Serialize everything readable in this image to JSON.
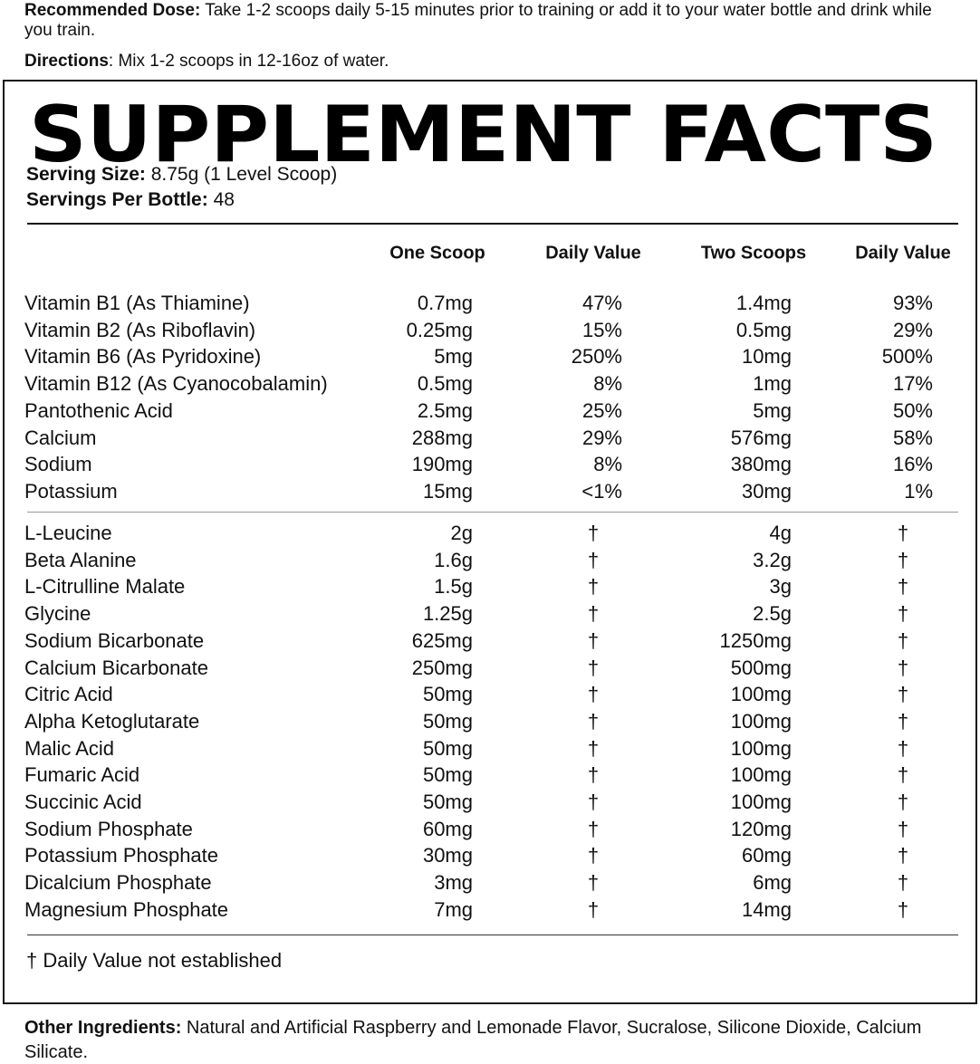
{
  "intro": {
    "dose_label": "Recommended Dose:",
    "dose_text": "Take 1-2 scoops daily 5-15 minutes prior to training or add it to your water bottle and drink while you train.",
    "directions_label": "Directions",
    "directions_text": ": Mix 1-2 scoops in 12-16oz of water."
  },
  "facts": {
    "title": "SUPPLEMENT FACTS",
    "serving_size_label": "Serving Size:",
    "serving_size": "8.75g (1 Level Scoop)",
    "servings_label": "Servings Per Bottle:",
    "servings": "48",
    "headers": [
      "One Scoop",
      "Daily Value",
      "Two Scoops",
      "Daily Value"
    ],
    "vitamins": [
      [
        "Vitamin B1 (As Thiamine)",
        "0.7mg",
        "47%",
        "1.4mg",
        "93%"
      ],
      [
        "Vitamin B2 (As Riboflavin)",
        "0.25mg",
        "15%",
        "0.5mg",
        "29%"
      ],
      [
        "Vitamin B6 (As Pyridoxine)",
        "5mg",
        "250%",
        "10mg",
        "500%"
      ],
      [
        "Vitamin B12 (As Cyanocobalamin)",
        "0.5mg",
        "8%",
        "1mg",
        "17%"
      ],
      [
        "Pantothenic Acid",
        "2.5mg",
        "25%",
        "5mg",
        "50%"
      ],
      [
        "Calcium",
        "288mg",
        "29%",
        "576mg",
        "58%"
      ],
      [
        "Sodium",
        "190mg",
        "8%",
        "380mg",
        "16%"
      ],
      [
        "Potassium",
        "15mg",
        "<1%",
        "30mg",
        "1%"
      ]
    ],
    "others": [
      [
        "L-Leucine",
        "2g",
        "†",
        "4g",
        "†"
      ],
      [
        "Beta Alanine",
        "1.6g",
        "†",
        "3.2g",
        "†"
      ],
      [
        "L-Citrulline Malate",
        "1.5g",
        "†",
        "3g",
        "†"
      ],
      [
        "Glycine",
        "1.25g",
        "†",
        "2.5g",
        "†"
      ],
      [
        "Sodium Bicarbonate",
        "625mg",
        "†",
        "1250mg",
        "†"
      ],
      [
        "Calcium Bicarbonate",
        "250mg",
        "†",
        "500mg",
        "†"
      ],
      [
        "Citric Acid",
        "50mg",
        "†",
        "100mg",
        "†"
      ],
      [
        "Alpha Ketoglutarate",
        "50mg",
        "†",
        "100mg",
        "†"
      ],
      [
        "Malic Acid",
        "50mg",
        "†",
        "100mg",
        "†"
      ],
      [
        "Fumaric Acid",
        "50mg",
        "†",
        "100mg",
        "†"
      ],
      [
        "Succinic Acid",
        "50mg",
        "†",
        "100mg",
        "†"
      ],
      [
        "Sodium Phosphate",
        "60mg",
        "†",
        "120mg",
        "†"
      ],
      [
        "Potassium Phosphate",
        "30mg",
        "†",
        "60mg",
        "†"
      ],
      [
        "Dicalcium Phosphate",
        "3mg",
        "†",
        "6mg",
        "†"
      ],
      [
        "Magnesium Phosphate",
        "7mg",
        "†",
        "14mg",
        "†"
      ]
    ],
    "footnote": "† Daily Value not established"
  },
  "other_ingredients": {
    "label": "Other Ingredients:",
    "text": "Natural and Artificial Raspberry and Lemonade Flavor, Sucralose, Silicone Dioxide, Calcium Silicate."
  }
}
